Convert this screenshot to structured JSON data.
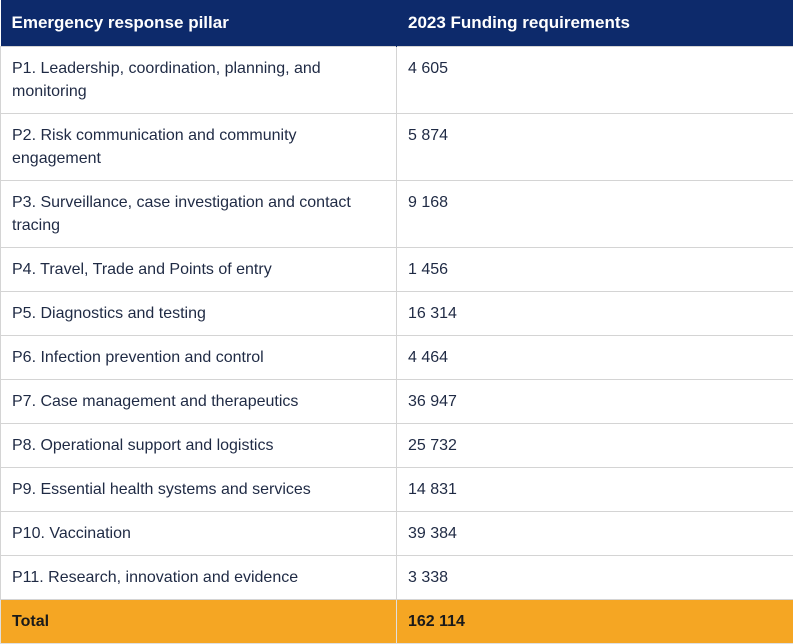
{
  "table": {
    "headers": [
      "Emergency response pillar",
      "2023 Funding requirements"
    ],
    "rows": [
      {
        "pillar": "P1. Leadership, coordination, planning, and monitoring",
        "funding": "4 605"
      },
      {
        "pillar": "P2. Risk communication and community engagement",
        "funding": "5 874"
      },
      {
        "pillar": "P3. Surveillance, case investigation and contact tracing",
        "funding": "9 168"
      },
      {
        "pillar": "P4. Travel, Trade and Points of entry",
        "funding": "1 456"
      },
      {
        "pillar": "P5. Diagnostics and testing",
        "funding": "16 314"
      },
      {
        "pillar": "P6. Infection prevention and control",
        "funding": "4 464"
      },
      {
        "pillar": "P7. Case management and therapeutics",
        "funding": "36 947"
      },
      {
        "pillar": "P8. Operational support and logistics",
        "funding": "25 732"
      },
      {
        "pillar": "P9. Essential health systems and services",
        "funding": "14 831"
      },
      {
        "pillar": "P10. Vaccination",
        "funding": "39 384"
      },
      {
        "pillar": "P11. Research, innovation and evidence",
        "funding": "3 338"
      }
    ],
    "total": {
      "label": "Total",
      "value": "162 114"
    }
  },
  "colors": {
    "header_bg": "#0d2a6b",
    "total_bg": "#f5a623"
  }
}
